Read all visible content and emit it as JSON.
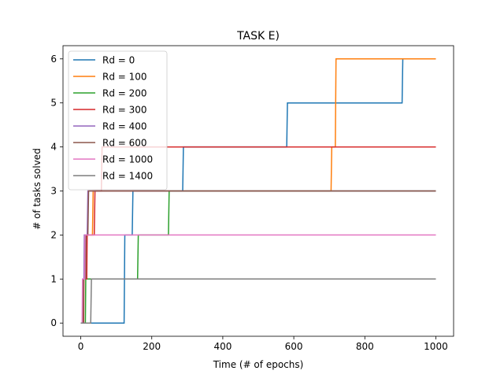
{
  "chart_data": {
    "type": "line",
    "title": "TASK E)",
    "xlabel": "Time (# of epochs)",
    "ylabel": "# of tasks solved",
    "xlim": [
      -50,
      1050
    ],
    "ylim": [
      -0.3,
      6.3
    ],
    "xticks": [
      0,
      200,
      400,
      600,
      800,
      1000
    ],
    "yticks": [
      0,
      1,
      2,
      3,
      4,
      5,
      6
    ],
    "grid": false,
    "legend_position": "upper-left",
    "series": [
      {
        "name": "Rd = 0",
        "color": "#1f77b4",
        "x": [
          0,
          122,
          124,
          145,
          147,
          287,
          289,
          580,
          582,
          905,
          907,
          1000
        ],
        "y": [
          0,
          0,
          2,
          2,
          3,
          3,
          4,
          4,
          5,
          5,
          6,
          6
        ]
      },
      {
        "name": "Rd = 100",
        "color": "#ff7f0e",
        "x": [
          0,
          5,
          6,
          15,
          16,
          33,
          35,
          283,
          285,
          705,
          707,
          717,
          719,
          1000
        ],
        "y": [
          0,
          0,
          1,
          1,
          2,
          2,
          3,
          3,
          3,
          3,
          4,
          4,
          6,
          6
        ]
      },
      {
        "name": "Rd = 200",
        "color": "#2ca02c",
        "x": [
          0,
          13,
          14,
          160,
          162,
          247,
          249,
          1000
        ],
        "y": [
          0,
          0,
          1,
          1,
          2,
          2,
          3,
          3
        ]
      },
      {
        "name": "Rd = 300",
        "color": "#d62728",
        "x": [
          0,
          8,
          9,
          17,
          18,
          38,
          40,
          58,
          60,
          1000
        ],
        "y": [
          0,
          0,
          1,
          1,
          2,
          2,
          3,
          3,
          4,
          4
        ]
      },
      {
        "name": "Rd = 400",
        "color": "#9467bd",
        "x": [
          0,
          5,
          6,
          9,
          10,
          18,
          20,
          1000
        ],
        "y": [
          0,
          0,
          1,
          1,
          2,
          2,
          3,
          3
        ]
      },
      {
        "name": "Rd = 600",
        "color": "#8c564b",
        "x": [
          0,
          7,
          8,
          14,
          15,
          20,
          22,
          1000
        ],
        "y": [
          0,
          0,
          1,
          1,
          2,
          2,
          3,
          3
        ]
      },
      {
        "name": "Rd = 1000",
        "color": "#e377c2",
        "x": [
          0,
          4,
          5,
          11,
          12,
          1000
        ],
        "y": [
          0,
          0,
          1,
          1,
          2,
          2
        ]
      },
      {
        "name": "Rd = 1400",
        "color": "#7f7f7f",
        "x": [
          0,
          28,
          30,
          1000
        ],
        "y": [
          0,
          0,
          1,
          1
        ]
      }
    ]
  }
}
